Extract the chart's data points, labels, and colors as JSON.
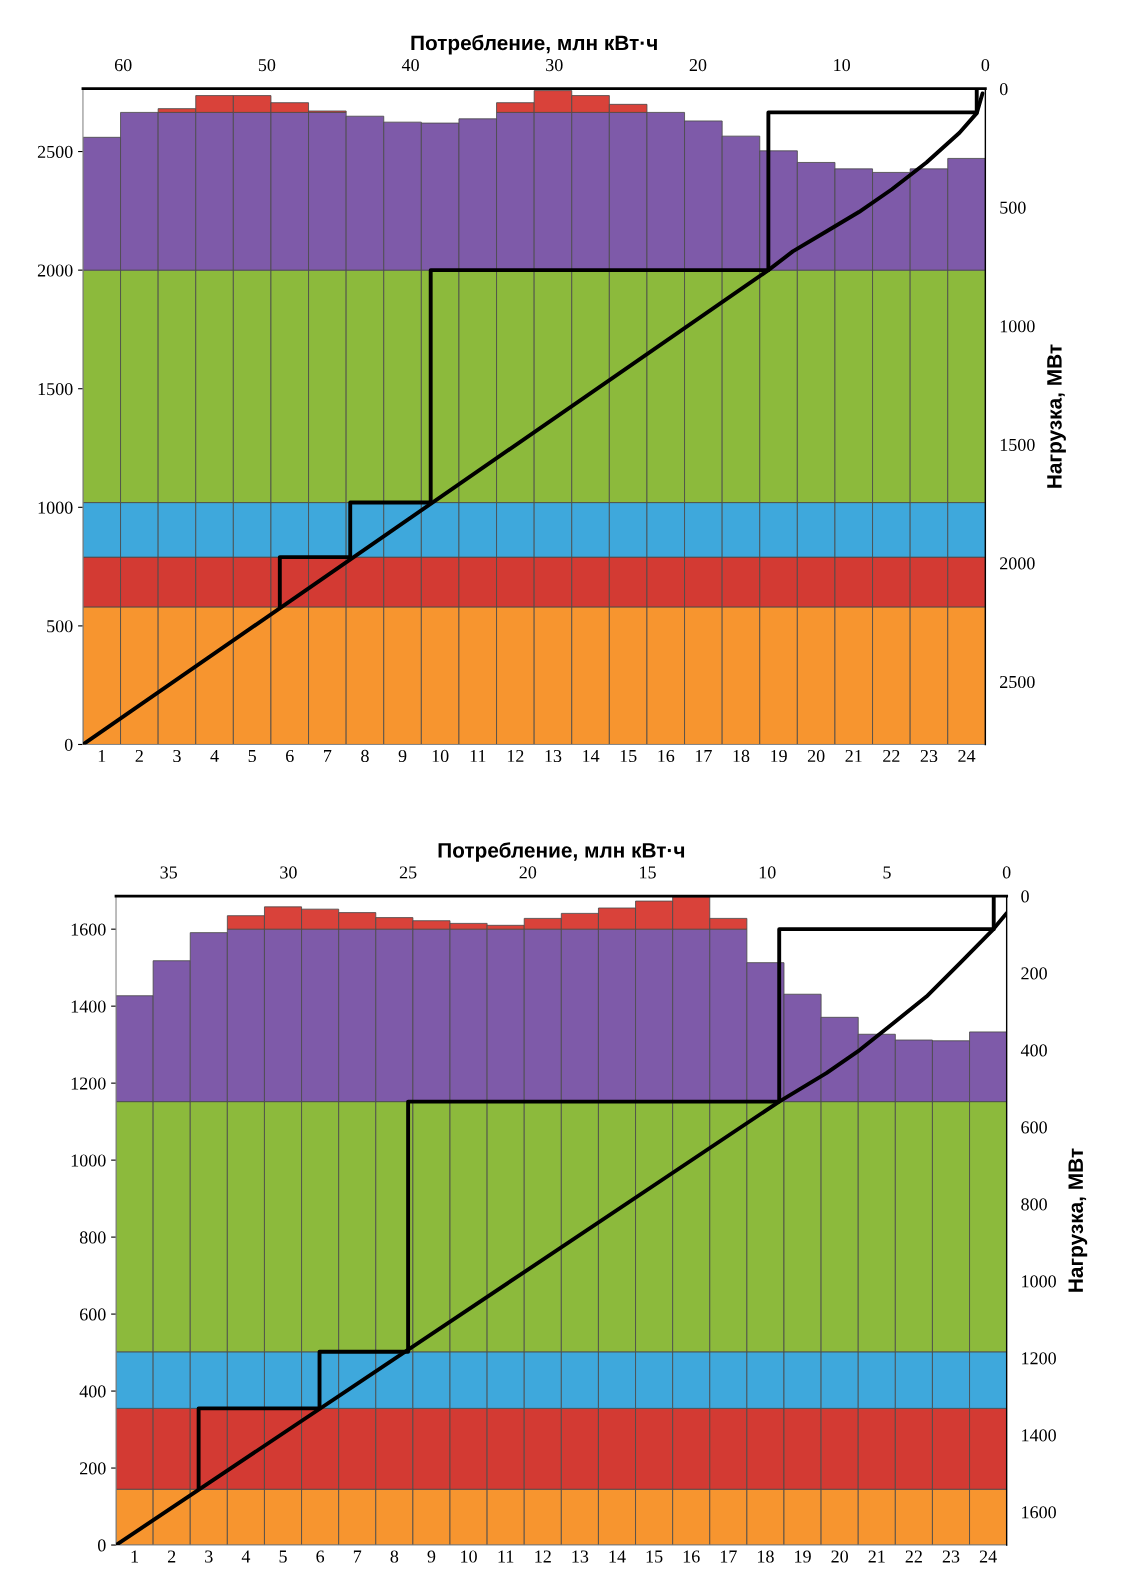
{
  "chart_data": [
    {
      "type": "bar",
      "stacked": true,
      "categories": [
        "1",
        "2",
        "3",
        "4",
        "5",
        "6",
        "7",
        "8",
        "9",
        "10",
        "11",
        "12",
        "13",
        "14",
        "15",
        "16",
        "17",
        "18",
        "19",
        "20",
        "21",
        "22",
        "23",
        "24"
      ],
      "ylim": [
        0,
        2765
      ],
      "yticks": [
        0,
        500,
        1000,
        1500,
        2000,
        2500
      ],
      "grid": false,
      "series": [
        {
          "color": "#f7952f",
          "values": [
            580,
            580,
            580,
            580,
            580,
            580,
            580,
            580,
            580,
            580,
            580,
            580,
            580,
            580,
            580,
            580,
            580,
            580,
            580,
            580,
            580,
            580,
            580,
            580
          ]
        },
        {
          "color": "#d33a33",
          "values": [
            210,
            210,
            210,
            210,
            210,
            210,
            210,
            210,
            210,
            210,
            210,
            210,
            210,
            210,
            210,
            210,
            210,
            210,
            210,
            210,
            210,
            210,
            210,
            210
          ]
        },
        {
          "color": "#3ea8dc",
          "values": [
            230,
            230,
            230,
            230,
            230,
            230,
            230,
            230,
            230,
            230,
            230,
            230,
            230,
            230,
            230,
            230,
            230,
            230,
            230,
            230,
            230,
            230,
            230,
            230
          ]
        },
        {
          "color": "#8cba3c",
          "values": [
            980,
            980,
            980,
            980,
            980,
            980,
            980,
            980,
            980,
            980,
            980,
            980,
            980,
            980,
            980,
            980,
            980,
            980,
            980,
            980,
            980,
            980,
            980,
            980
          ]
        },
        {
          "color": "#7e5aa9",
          "values": [
            560,
            665,
            665,
            665,
            665,
            665,
            665,
            649,
            624,
            620,
            638,
            665,
            665,
            665,
            665,
            665,
            629,
            565,
            503,
            454,
            427,
            412,
            427,
            471
          ]
        },
        {
          "color": "#d9423a",
          "values": [
            null,
            null,
            16,
            71,
            71,
            41,
            6,
            null,
            null,
            null,
            null,
            41,
            92,
            71,
            34,
            null,
            null,
            null,
            null,
            null,
            null,
            null,
            null,
            null
          ]
        }
      ]
    },
    {
      "type": "line",
      "xlim": [
        62.8,
        0
      ],
      "xticks": [
        0,
        10,
        20,
        30,
        40,
        50,
        60
      ],
      "xlabel": "Потребление, млн кВт·ч",
      "ylim": [
        2765,
        0
      ],
      "yticks": [
        0,
        500,
        1000,
        1500,
        2000,
        2500
      ],
      "ylabel": "Нагрузка, МВт",
      "grid": false,
      "series": [
        {
          "color": "#000000",
          "x": [
            0.2,
            0.6,
            1.8,
            4.1,
            6.5,
            8.8,
            11.1,
            13.4,
            15.1,
            62.8
          ],
          "values": [
            20,
            103,
            186,
            311,
            424,
            520,
            603,
            686,
            765,
            2765
          ]
        },
        {
          "color": "#000000",
          "x": [
            0.6,
            0.6,
            15.1,
            15.1,
            38.6,
            38.6,
            44.2,
            44.2,
            49.1,
            49.1
          ],
          "values": [
            0,
            100,
            100,
            765,
            765,
            1745,
            1745,
            1975,
            1975,
            2185
          ]
        }
      ]
    },
    {
      "type": "bar",
      "stacked": true,
      "categories": [
        "1",
        "2",
        "3",
        "4",
        "5",
        "6",
        "7",
        "8",
        "9",
        "10",
        "11",
        "12",
        "13",
        "14",
        "15",
        "16",
        "17",
        "18",
        "19",
        "20",
        "21",
        "22",
        "23",
        "24"
      ],
      "ylim": [
        0,
        1686
      ],
      "yticks": [
        0,
        200,
        400,
        600,
        800,
        1000,
        1200,
        1400,
        1600
      ],
      "grid": false,
      "series": [
        {
          "color": "#f7952f",
          "values": [
            145,
            145,
            145,
            145,
            145,
            145,
            145,
            145,
            145,
            145,
            145,
            145,
            145,
            145,
            145,
            145,
            145,
            145,
            145,
            145,
            145,
            145,
            145,
            145
          ]
        },
        {
          "color": "#d33a33",
          "values": [
            210,
            210,
            210,
            210,
            210,
            210,
            210,
            210,
            210,
            210,
            210,
            210,
            210,
            210,
            210,
            210,
            210,
            210,
            210,
            210,
            210,
            210,
            210,
            210
          ]
        },
        {
          "color": "#3ea8dc",
          "values": [
            147,
            147,
            147,
            147,
            147,
            147,
            147,
            147,
            147,
            147,
            147,
            147,
            147,
            147,
            147,
            147,
            147,
            147,
            147,
            147,
            147,
            147,
            147,
            147
          ]
        },
        {
          "color": "#8cba3c",
          "values": [
            650,
            650,
            650,
            650,
            650,
            650,
            650,
            650,
            650,
            650,
            650,
            650,
            650,
            650,
            650,
            650,
            650,
            650,
            650,
            650,
            650,
            650,
            650,
            650
          ]
        },
        {
          "color": "#7e5aa9",
          "values": [
            275,
            366,
            439,
            448,
            448,
            448,
            448,
            448,
            448,
            448,
            448,
            448,
            448,
            448,
            448,
            448,
            448,
            361,
            279,
            219,
            175,
            160,
            158,
            181
          ]
        },
        {
          "color": "#d9423a",
          "values": [
            null,
            null,
            null,
            35,
            58,
            52,
            43,
            30,
            22,
            15,
            10,
            28,
            41,
            55,
            73,
            84,
            28,
            null,
            null,
            null,
            null,
            null,
            null,
            null
          ]
        }
      ]
    },
    {
      "type": "line",
      "xlim": [
        37.2,
        0
      ],
      "xticks": [
        0,
        5,
        10,
        15,
        20,
        25,
        30,
        35
      ],
      "xlabel": "Потребление, млн кВт·ч",
      "ylim": [
        1686,
        0
      ],
      "yticks": [
        0,
        200,
        400,
        600,
        800,
        1000,
        1200,
        1400,
        1600
      ],
      "ylabel": "Нагрузка, МВт",
      "grid": false,
      "series": [
        {
          "color": "#000000",
          "x": [
            0.01,
            0.57,
            1.96,
            3.35,
            4.75,
            6.14,
            7.53,
            9.5,
            37.2
          ],
          "values": [
            45,
            87,
            175,
            261,
            331,
            400,
            460,
            534,
            1686
          ]
        },
        {
          "color": "#000000",
          "x": [
            0.54,
            0.54,
            9.5,
            9.5,
            25.0,
            25.0,
            28.7,
            28.7,
            33.75,
            33.75
          ],
          "values": [
            0,
            86,
            86,
            534,
            534,
            1184,
            1184,
            1331,
            1331,
            1541
          ]
        }
      ]
    }
  ]
}
